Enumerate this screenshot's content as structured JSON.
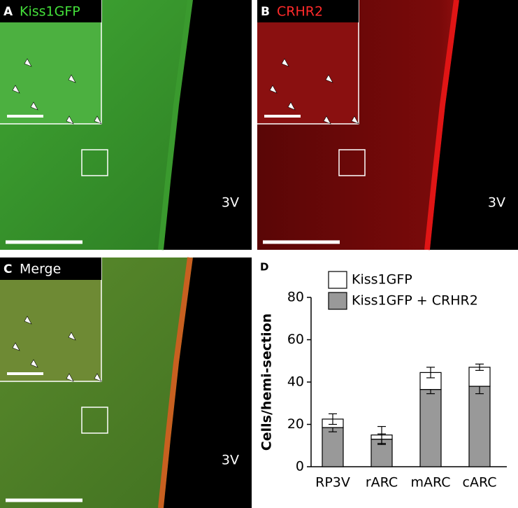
{
  "panels": [
    {
      "letter": "A",
      "title": "Kiss1GFP",
      "region": "3V"
    },
    {
      "letter": "B",
      "title": "CRHR2",
      "region": "3V"
    },
    {
      "letter": "C",
      "title": "Merge",
      "region": "3V"
    }
  ],
  "chart_data": {
    "type": "stacked-bar",
    "letter": "D",
    "y_label": "Cells/hemi-section",
    "categories": [
      "RP3V",
      "rARC",
      "mARC",
      "cARC"
    ],
    "series": [
      {
        "name": "Kiss1GFP",
        "color": "#ffffff",
        "values": [
          4,
          2,
          8,
          9
        ],
        "errors": [
          2.5,
          4,
          2.5,
          1.5
        ]
      },
      {
        "name": "Kiss1GFP + CRHR2",
        "color": "#999999",
        "values": [
          18.5,
          13,
          36.5,
          38
        ],
        "errors": [
          2,
          2.5,
          2,
          3.5
        ]
      }
    ],
    "ylim": [
      0,
      80
    ],
    "yticks": [
      0,
      20,
      40,
      60,
      80
    ],
    "legend": "upper left"
  }
}
